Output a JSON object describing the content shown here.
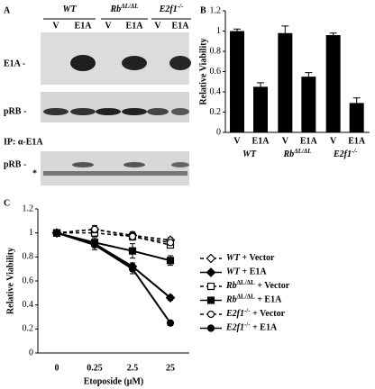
{
  "blot": {
    "panel": "A",
    "groups": [
      [
        {
          "text": "WT"
        }
      ],
      [
        {
          "text": "Rb"
        },
        {
          "text": "ΔL/ΔL",
          "style": "sup"
        }
      ],
      [
        {
          "text": "E2f1"
        },
        {
          "text": "-/-",
          "style": "sup"
        }
      ]
    ],
    "lanes": [
      "V",
      "E1A",
      "V",
      "E1A",
      "V",
      "E1A"
    ],
    "rows": [
      "E1A -",
      "pRB -",
      "pRB -",
      "*"
    ],
    "ip_label": "IP:  α-E1A"
  },
  "chart_data": [
    {
      "type": "bar",
      "panel": "B",
      "ylabel": "Relative Viability",
      "categories": [
        "V",
        "E1A",
        "V",
        "E1A",
        "V",
        "E1A"
      ],
      "groups": [
        [
          {
            "text": "WT"
          }
        ],
        [
          {
            "text": "Rb"
          },
          {
            "text": "ΔL/ΔL",
            "style": "sup"
          }
        ],
        [
          {
            "text": "E2f1"
          },
          {
            "text": "-/-",
            "style": "sup"
          }
        ]
      ],
      "values": [
        1.0,
        0.45,
        0.98,
        0.55,
        0.96,
        0.29
      ],
      "errors": [
        0.02,
        0.04,
        0.07,
        0.04,
        0.02,
        0.05
      ],
      "color": "#000000",
      "ylim": [
        0,
        1.2
      ],
      "yticks": [
        0,
        0.2,
        0.4,
        0.6,
        0.8,
        1,
        1.2
      ]
    },
    {
      "type": "line",
      "panel": "C",
      "ylabel": "Relative Viability",
      "xlabel": "Etoposide (μM)",
      "categories": [
        "0",
        "0.25",
        "2.5",
        "25"
      ],
      "ylim": [
        0,
        1.2
      ],
      "yticks": [
        0,
        0.2,
        0.4,
        0.6,
        0.8,
        1,
        1.2
      ],
      "series": [
        {
          "name": [
            {
              "text": "WT",
              "style": "italic"
            },
            {
              "text": " + Vector"
            }
          ],
          "marker": "diamond",
          "filled": false,
          "dashed": true,
          "color": "#000000",
          "values": [
            1.0,
            1.03,
            0.98,
            0.94
          ],
          "errors": [
            0.02,
            0.03,
            0.03,
            0.02
          ]
        },
        {
          "name": [
            {
              "text": "WT",
              "style": "italic"
            },
            {
              "text": " + E1A"
            }
          ],
          "marker": "diamond",
          "filled": true,
          "dashed": false,
          "color": "#000000",
          "values": [
            1.0,
            0.91,
            0.72,
            0.46
          ],
          "errors": [
            0.02,
            0.03,
            0.03,
            0.02
          ]
        },
        {
          "name": [
            {
              "text": "Rb",
              "style": "italic"
            },
            {
              "text": "ΔL/ΔL",
              "style": "sup"
            },
            {
              "text": " + Vector"
            }
          ],
          "marker": "square",
          "filled": false,
          "dashed": true,
          "color": "#000000",
          "values": [
            1.0,
            1.0,
            0.97,
            0.9
          ],
          "errors": [
            0.02,
            0.03,
            0.03,
            0.02
          ]
        },
        {
          "name": [
            {
              "text": "Rb",
              "style": "italic"
            },
            {
              "text": "ΔL/ΔL",
              "style": "sup"
            },
            {
              "text": " + E1A"
            }
          ],
          "marker": "square",
          "filled": true,
          "dashed": false,
          "color": "#000000",
          "values": [
            1.0,
            0.92,
            0.85,
            0.77
          ],
          "errors": [
            0.02,
            0.04,
            0.06,
            0.04
          ]
        },
        {
          "name": [
            {
              "text": "E2f1",
              "style": "italic"
            },
            {
              "text": "-/-",
              "style": "sup"
            },
            {
              "text": " + Vector"
            }
          ],
          "marker": "circle",
          "filled": false,
          "dashed": true,
          "color": "#000000",
          "values": [
            1.0,
            1.03,
            0.97,
            0.92
          ],
          "errors": [
            0.02,
            0.03,
            0.03,
            0.02
          ]
        },
        {
          "name": [
            {
              "text": "E2f1",
              "style": "italic"
            },
            {
              "text": "-/-",
              "style": "sup"
            },
            {
              "text": " + E1A"
            }
          ],
          "marker": "circle",
          "filled": true,
          "dashed": false,
          "color": "#000000",
          "values": [
            1.0,
            0.9,
            0.7,
            0.25
          ],
          "errors": [
            0.02,
            0.04,
            0.04,
            0.02
          ]
        }
      ]
    }
  ]
}
